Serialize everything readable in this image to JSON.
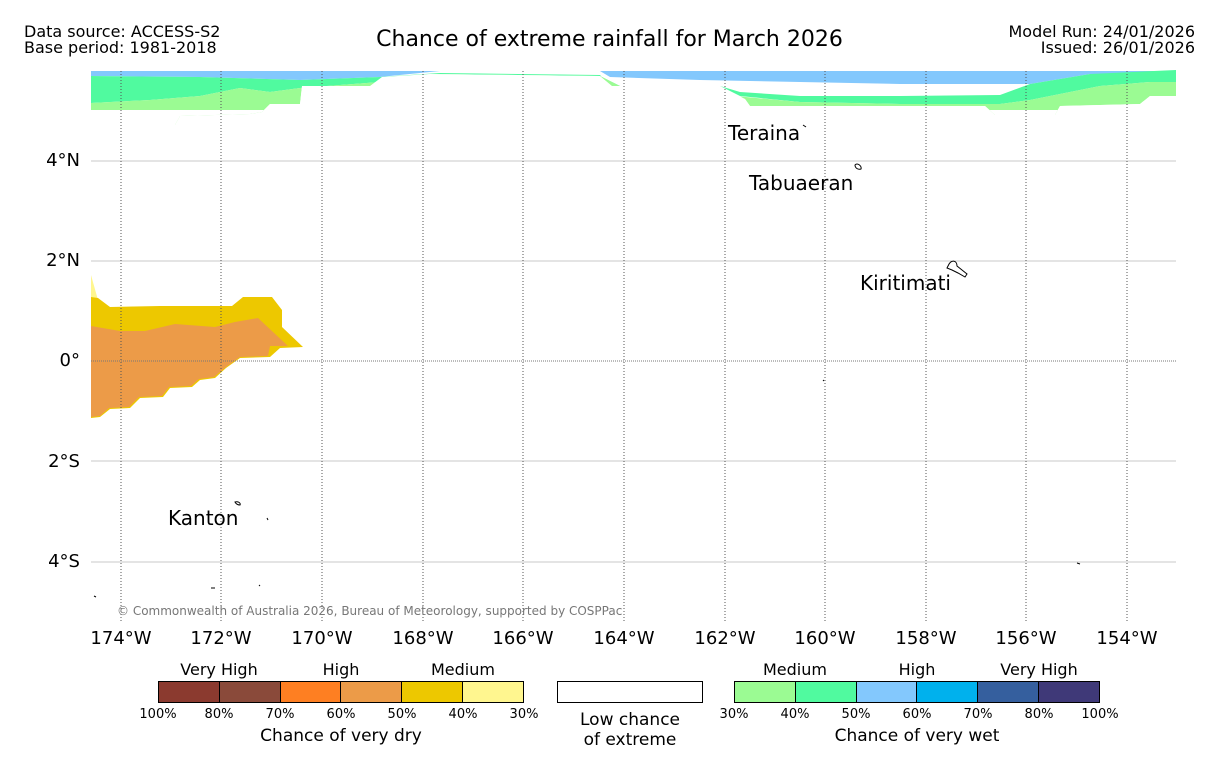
{
  "header": {
    "data_source": "Data source: ACCESS-S2",
    "base_period": "Base period: 1981-2018",
    "title": "Chance of extreme rainfall for March 2026",
    "model_run": "Model Run: 24/01/2026",
    "issued": "Issued: 26/01/2026"
  },
  "map": {
    "lat_labels": [
      "4°N",
      "2°N",
      "0°",
      "2°S",
      "4°S"
    ],
    "lon_labels": [
      "174°W",
      "172°W",
      "170°W",
      "168°W",
      "166°W",
      "164°W",
      "162°W",
      "160°W",
      "158°W",
      "156°W",
      "154°W"
    ],
    "places": [
      "Teraina",
      "Tabuaeran",
      "Kiritimati",
      "Kanton"
    ],
    "copyright": "© Commonwealth of Australia 2026, Bureau of Meteorology, supported by COSPPac"
  },
  "legend": {
    "dry": {
      "categories": [
        "Very High",
        "High",
        "Medium"
      ],
      "ticks": [
        "100%",
        "80%",
        "70%",
        "60%",
        "50%",
        "40%",
        "30%"
      ],
      "colors": [
        "#8b3a2f",
        "#8a4a3a",
        "#fe7f22",
        "#ec9b48",
        "#edc800",
        "#fff68f"
      ],
      "caption": "Chance of very dry"
    },
    "low": {
      "caption_line1": "Low chance",
      "caption_line2": "of extreme"
    },
    "wet": {
      "categories": [
        "Medium",
        "High",
        "Very High"
      ],
      "ticks": [
        "30%",
        "40%",
        "50%",
        "60%",
        "70%",
        "80%",
        "100%"
      ],
      "colors": [
        "#9bfb93",
        "#50fa9f",
        "#83c8fd",
        "#00b1ed",
        "#355f9e",
        "#3f3978"
      ],
      "caption": "Chance of very wet"
    }
  }
}
